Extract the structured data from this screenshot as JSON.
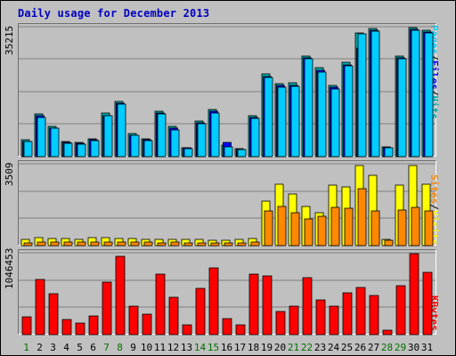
{
  "chart_data": {
    "type": "bar",
    "title": "Daily usage for December 2013",
    "categories": [
      "1",
      "2",
      "3",
      "4",
      "5",
      "6",
      "7",
      "8",
      "9",
      "10",
      "11",
      "12",
      "13",
      "14",
      "15",
      "16",
      "17",
      "18",
      "19",
      "20",
      "21",
      "22",
      "23",
      "24",
      "25",
      "26",
      "27",
      "28",
      "29",
      "30",
      "31"
    ],
    "weekend_days": [
      "1",
      "7",
      "8",
      "14",
      "15",
      "21",
      "22",
      "28",
      "29"
    ],
    "colors": {
      "hits": "#00aaaa",
      "files": "#0000ff",
      "pages": "#00ccff",
      "visits": "#ffff00",
      "sites": "#ff8800",
      "kbytes": "#ff0000",
      "grid": "#808080",
      "weekend_label": "#007000"
    },
    "panels": [
      {
        "name": "hits_files_pages",
        "ymax_label": "35215",
        "ylim": [
          0,
          35215
        ],
        "label_parts": [
          "Pages",
          "/",
          "Files",
          "/",
          "Hits"
        ],
        "label_colors": [
          "#00ccff",
          "#000000",
          "#0000ff",
          "#000000",
          "#00aaaa"
        ],
        "series": [
          {
            "name": "Hits",
            "values": [
              4500,
              11500,
              8300,
              4100,
              3800,
              4800,
              11800,
              15000,
              6200,
              4800,
              12400,
              8100,
              2500,
              9700,
              12700,
              3200,
              2200,
              11000,
              22500,
              19800,
              19900,
              27300,
              24000,
              19400,
              25500,
              33600,
              34800,
              2700,
              27300,
              35000,
              34200
            ]
          },
          {
            "name": "Files",
            "values": [
              4200,
              11000,
              7800,
              3900,
              3600,
              4500,
              11200,
              14400,
              5900,
              4500,
              11900,
              7600,
              2300,
              9200,
              12200,
              3900,
              2000,
              10600,
              21800,
              19200,
              19300,
              26800,
              23300,
              18800,
              24900,
              29500,
              34300,
              2500,
              26800,
              34600,
              33700
            ]
          },
          {
            "name": "Pages",
            "values": [
              4000,
              10600,
              7600,
              3700,
              3300,
              4300,
              11000,
              14200,
              5700,
              4300,
              11500,
              7300,
              2200,
              8900,
              11900,
              2600,
              1900,
              10300,
              21500,
              18800,
              19100,
              26500,
              22900,
              18400,
              24600,
              33300,
              34000,
              2400,
              26500,
              34300,
              33500
            ]
          }
        ]
      },
      {
        "name": "visits_sites",
        "ymax_label": "3509",
        "ylim": [
          0,
          3509
        ],
        "label_parts": [
          "Sites",
          "/",
          "Visits"
        ],
        "label_colors": [
          "#ff8800",
          "#000000",
          "#ffff00"
        ],
        "series": [
          {
            "name": "Visits",
            "values": [
              260,
              340,
              320,
              300,
              280,
              340,
              330,
              320,
              300,
              280,
              260,
              280,
              250,
              250,
              230,
              230,
              250,
              290,
              1900,
              2630,
              2200,
              1680,
              1420,
              2610,
              2510,
              3450,
              3000,
              260,
              2580,
              3450,
              2650
            ]
          },
          {
            "name": "Sites",
            "values": [
              130,
              170,
              170,
              150,
              150,
              170,
              170,
              160,
              150,
              140,
              130,
              140,
              120,
              120,
              110,
              110,
              120,
              140,
              1470,
              1670,
              1400,
              1150,
              1240,
              1650,
              1610,
              2450,
              1490,
              240,
              1530,
              1650,
              1500
            ]
          }
        ]
      },
      {
        "name": "kbytes",
        "ymax_label": "1046453",
        "ylim": [
          0,
          1046453
        ],
        "label_parts": [
          "KBytes"
        ],
        "label_colors": [
          "#ff0000"
        ],
        "series": [
          {
            "name": "KBytes",
            "values": [
              222000,
              700000,
              520000,
              190000,
              150000,
              240000,
              670000,
              1000000,
              360000,
              260000,
              770000,
              480000,
              130000,
              590000,
              850000,
              200000,
              130000,
              770000,
              750000,
              300000,
              360000,
              730000,
              440000,
              360000,
              540000,
              600000,
              500000,
              55000,
              620000,
              1040000,
              800000
            ]
          }
        ]
      }
    ]
  }
}
